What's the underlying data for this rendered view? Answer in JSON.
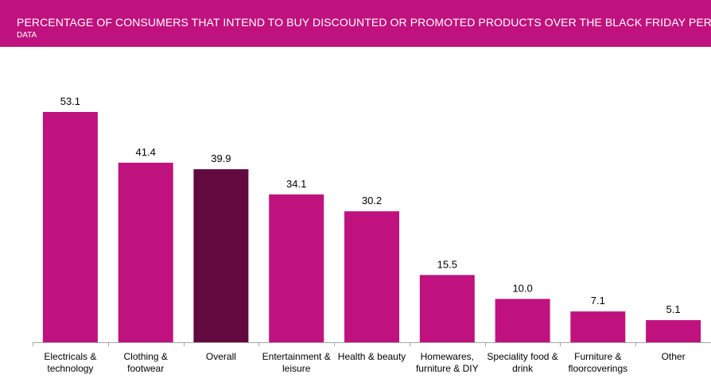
{
  "header": {
    "title": "PERCENTAGE OF CONSUMERS THAT INTEND TO BUY DISCOUNTED OR PROMOTED PRODUCTS OVER THE BLACK FRIDAY PERIOD",
    "subtitle": "DATA"
  },
  "colors": {
    "accent": "#c0127e",
    "bar": "#c0127e",
    "highlight_bar": "#620a40",
    "axis": "#a6a6a6"
  },
  "chart_data": {
    "type": "bar",
    "categories": [
      [
        "Electricals &",
        "technology"
      ],
      [
        "Clothing &",
        "footwear"
      ],
      [
        "Overall"
      ],
      [
        "Entertainment &",
        "leisure"
      ],
      [
        "Health & beauty"
      ],
      [
        "Homewares,",
        "furniture & DIY"
      ],
      [
        "Speciality food &",
        "drink"
      ],
      [
        "Furniture &",
        "floorcoverings"
      ],
      [
        "Other"
      ]
    ],
    "values": [
      53.1,
      41.4,
      39.9,
      34.1,
      30.2,
      15.5,
      10.0,
      7.1,
      5.1
    ],
    "value_labels": [
      "53.1",
      "41.4",
      "39.9",
      "34.1",
      "30.2",
      "15.5",
      "10.0",
      "7.1",
      "5.1"
    ],
    "highlight_category": "Overall",
    "title": "PERCENTAGE OF CONSUMERS THAT INTEND TO BUY DISCOUNTED OR PROMOTED PRODUCTS OVER THE BLACK FRIDAY PERIOD",
    "subtitle": "DATA",
    "xlabel": "",
    "ylabel": "",
    "ylim": [
      0,
      53.1
    ],
    "grid": false,
    "legend": "none"
  }
}
